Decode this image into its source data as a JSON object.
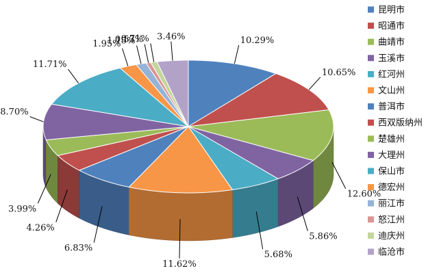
{
  "chart_data": {
    "type": "pie",
    "title": "",
    "legend_position": "right",
    "labels": [
      "昆明市",
      "昭通市",
      "曲靖市",
      "玉溪市",
      "红河州",
      "文山州",
      "普洱市",
      "西双版纳州",
      "楚雄州",
      "大理州",
      "保山市",
      "德宏州",
      "丽江市",
      "怒江州",
      "迪庆州",
      "临沧市"
    ],
    "values": [
      10.29,
      10.65,
      12.6,
      5.86,
      5.68,
      11.62,
      6.83,
      4.26,
      3.99,
      8.7,
      11.71,
      1.95,
      1.15,
      0.53,
      0.71,
      3.46
    ],
    "value_labels": [
      "10.29%",
      "10.65%",
      "12.60%",
      "5.86%",
      "5.68%",
      "11.62%",
      "6.83%",
      "4.26%",
      "3.99%",
      "8.70%",
      "11.71%",
      "1.95%",
      "1.15%",
      "0.53%",
      "0.71%",
      "3.46%"
    ],
    "colors": [
      "#4F81BD",
      "#C0504D",
      "#9BBB59",
      "#8064A2",
      "#4BACC6",
      "#F79646",
      "#4F81BD",
      "#C0504D",
      "#9BBB59",
      "#8064A2",
      "#4BACC6",
      "#F79646",
      "#95B3D7",
      "#D99694",
      "#C3D69B",
      "#B3A2C7"
    ]
  }
}
